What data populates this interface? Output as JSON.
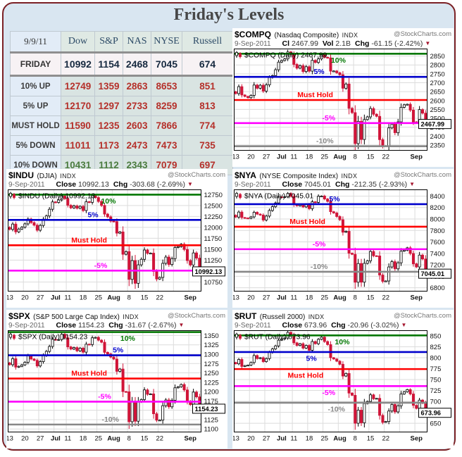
{
  "title": "Friday's Levels",
  "icons": {
    "down_triangle": "▼",
    "candlestick": "candlestick-icon"
  },
  "colors": {
    "frame_border": "#7b2125",
    "page_bg": "#d9e6f1",
    "level_up10": "#007700",
    "level_up5": "#0000cc",
    "level_must_hold": "#ff0000",
    "level_down5": "#ff00ff",
    "level_down10": "#808080",
    "candle_down": "#d01438",
    "candle_up": "#ffffff",
    "table_red": "#b5302a",
    "table_green": "#4b7c3f",
    "table_navy": "#16293f"
  },
  "table": {
    "date": "9/9/11",
    "columns": [
      "Dow",
      "S&P",
      "NAS",
      "NYSE",
      "Russell"
    ],
    "rows": [
      {
        "label": "FRIDAY",
        "values": [
          "10992",
          "1154",
          "2468",
          "7045",
          "674"
        ],
        "value_colors": [
          "#16293f",
          "#16293f",
          "#16293f",
          "#16293f",
          "#16293f"
        ]
      },
      {
        "label": "10% UP",
        "values": [
          "12749",
          "1359",
          "2863",
          "8653",
          "851"
        ],
        "value_colors": [
          "#b5302a",
          "#b5302a",
          "#b5302a",
          "#b5302a",
          "#b5302a"
        ]
      },
      {
        "label": "5% UP",
        "values": [
          "12170",
          "1297",
          "2733",
          "8259",
          "813"
        ],
        "value_colors": [
          "#b5302a",
          "#b5302a",
          "#b5302a",
          "#b5302a",
          "#b5302a"
        ]
      },
      {
        "label": "MUST HOLD",
        "values": [
          "11590",
          "1235",
          "2603",
          "7866",
          "774"
        ],
        "value_colors": [
          "#b5302a",
          "#b5302a",
          "#b5302a",
          "#b5302a",
          "#b5302a"
        ]
      },
      {
        "label": "5% DOWN",
        "values": [
          "11011",
          "1173",
          "2473",
          "7473",
          "735"
        ],
        "value_colors": [
          "#b5302a",
          "#b5302a",
          "#b5302a",
          "#b5302a",
          "#b5302a"
        ]
      },
      {
        "label": "10% DOWN",
        "values": [
          "10431",
          "1112",
          "2343",
          "7079",
          "697"
        ],
        "value_colors": [
          "#4b7c3f",
          "#4b7c3f",
          "#4b7c3f",
          "#b5302a",
          "#b5302a"
        ]
      }
    ]
  },
  "x_axis": {
    "grid_indices": [
      0,
      5,
      10,
      15,
      19,
      24,
      29,
      34,
      39,
      44,
      49,
      54,
      59
    ],
    "labels": [
      {
        "i": 0,
        "t": "13"
      },
      {
        "i": 5,
        "t": "20"
      },
      {
        "i": 10,
        "t": "27"
      },
      {
        "i": 15,
        "t": "Jul",
        "bold": true
      },
      {
        "i": 19,
        "t": "11"
      },
      {
        "i": 24,
        "t": "18"
      },
      {
        "i": 29,
        "t": "25"
      },
      {
        "i": 34,
        "t": "Aug",
        "bold": true
      },
      {
        "i": 39,
        "t": "8"
      },
      {
        "i": 44,
        "t": "15"
      },
      {
        "i": 49,
        "t": "22"
      },
      {
        "i": 59,
        "t": "Sep",
        "bold": true
      }
    ]
  },
  "chart_data": [
    {
      "type": "candlestick",
      "symbol": "$COMPQ",
      "name": "(Nasdaq Composite)",
      "kind": "INDX",
      "source": "@StockCharts.com",
      "date": "9-Sep-2011",
      "close_label": "Cl",
      "close": "2467.99",
      "vol_label": "Vol",
      "vol": "2.1B",
      "chg_label": "Chg",
      "chg": "-61.15 (-2.42%)",
      "legend": "$COMPQ (Daily) 2467.99",
      "y_ticks": [
        2350,
        2400,
        2450,
        2500,
        2550,
        2600,
        2650,
        2700,
        2750,
        2800,
        2850
      ],
      "y_range": [
        2320,
        2890
      ],
      "levels": [
        {
          "label": "10%",
          "value": 2863,
          "color": "#007700",
          "side": "below",
          "x": 0.54
        },
        {
          "label": "5%",
          "value": 2733,
          "color": "#0000cc",
          "side": "above",
          "x": 0.44
        },
        {
          "label": "Must Hold",
          "value": 2603,
          "color": "#ff0000",
          "side": "above",
          "x": 0.42
        },
        {
          "label": "-5%",
          "value": 2473,
          "color": "#ff00ff",
          "side": "above",
          "x": 0.49
        },
        {
          "label": "-10%",
          "value": 2343,
          "color": "#888888",
          "side": "above",
          "x": 0.47
        }
      ],
      "closes": [
        2639,
        2678,
        2631,
        2623,
        2616,
        2629,
        2687,
        2669,
        2686,
        2653,
        2688,
        2729,
        2740,
        2773,
        2816,
        2825,
        2834,
        2873,
        2860,
        2803,
        2782,
        2796,
        2763,
        2790,
        2765,
        2826,
        2814,
        2834,
        2858,
        2843,
        2840,
        2765,
        2766,
        2756,
        2745,
        2669,
        2693,
        2556,
        2532,
        2358,
        2483,
        2381,
        2493,
        2508,
        2555,
        2523,
        2511,
        2380,
        2342,
        2345,
        2446,
        2467,
        2419,
        2480,
        2562,
        2576,
        2579,
        2546,
        2480,
        2473,
        2549,
        2529,
        2467.99
      ]
    },
    {
      "type": "candlestick",
      "symbol": "$INDU",
      "name": "(DJIA)",
      "kind": "INDX",
      "source": "@StockCharts.com",
      "date": "9-Sep-2011",
      "close_label": "Close",
      "close": "10992.13",
      "vol_label": "",
      "vol": "",
      "chg_label": "Chg",
      "chg": "-303.68 (-2.69%)",
      "legend": "$INDU (Daily) 10992.13",
      "y_ticks": [
        10750,
        11000,
        11250,
        11500,
        11750,
        12000,
        12250,
        12500,
        12750
      ],
      "y_range": [
        10540,
        12860
      ],
      "levels": [
        {
          "label": "10%",
          "value": 12749,
          "color": "#007700",
          "side": "below",
          "x": 0.52
        },
        {
          "label": "5%",
          "value": 12170,
          "color": "#0000cc",
          "side": "above",
          "x": 0.44
        },
        {
          "label": "Must Hold",
          "value": 11590,
          "color": "#ff0000",
          "side": "above",
          "x": 0.42
        },
        {
          "label": "-5%",
          "value": 11011,
          "color": "#ff00ff",
          "side": "above",
          "x": 0.48
        },
        {
          "label": "-10%",
          "value": 10431,
          "color": "#888888",
          "side": "above",
          "x": 0.48
        }
      ],
      "closes": [
        11953,
        12076,
        11897,
        11962,
        12004,
        12080,
        12190,
        12109,
        12050,
        11934,
        12043,
        12188,
        12261,
        12414,
        12582,
        12570,
        12626,
        12719,
        12657,
        12505,
        12446,
        12492,
        12437,
        12480,
        12385,
        12587,
        12572,
        12724,
        12681,
        12593,
        12501,
        12303,
        12240,
        12143,
        12132,
        11867,
        11896,
        11384,
        11445,
        10810,
        11240,
        10720,
        11143,
        11269,
        11482,
        11406,
        11410,
        10991,
        10818,
        10855,
        11177,
        11321,
        11150,
        11285,
        11539,
        11560,
        11614,
        11494,
        11240,
        11139,
        11415,
        11296,
        10992.13
      ]
    },
    {
      "type": "candlestick",
      "symbol": "$NYA",
      "name": "(NYSE Composite Index)",
      "kind": "INDX",
      "source": "@StockCharts.com",
      "date": "9-Sep-2011",
      "close_label": "Close",
      "close": "7045.01",
      "vol_label": "",
      "vol": "",
      "chg_label": "Chg",
      "chg": "-212.35 (-2.93%)",
      "legend": "$NYA (Daily) 7045.01",
      "y_ticks": [
        6800,
        7000,
        7200,
        7400,
        7600,
        7800,
        8000,
        8200,
        8400
      ],
      "y_range": [
        6740,
        8510
      ],
      "levels": [
        {
          "label": "10%",
          "value": 8653,
          "color": "#007700",
          "side": "above",
          "x": 0.5
        },
        {
          "label": "5%",
          "value": 8259,
          "color": "#0000cc",
          "side": "above",
          "x": 0.52
        },
        {
          "label": "Must Hold",
          "value": 7866,
          "color": "#ff0000",
          "side": "above",
          "x": 0.38
        },
        {
          "label": "-5%",
          "value": 7473,
          "color": "#ff00ff",
          "side": "above",
          "x": 0.44
        },
        {
          "label": "-10%",
          "value": 7079,
          "color": "#888888",
          "side": "above",
          "x": 0.44
        }
      ],
      "closes": [
        8033,
        8121,
        8025,
        8017,
        8012,
        8037,
        8117,
        8085,
        8069,
        7982,
        8051,
        8149,
        8215,
        8280,
        8386,
        8380,
        8388,
        8446,
        8396,
        8253,
        8230,
        8248,
        8211,
        8254,
        8180,
        8300,
        8290,
        8396,
        8401,
        8349,
        8307,
        8127,
        8105,
        8043,
        7987,
        7769,
        7785,
        7402,
        7383,
        6896,
        7223,
        6897,
        7226,
        7270,
        7433,
        7358,
        7355,
        7021,
        6911,
        6918,
        7163,
        7255,
        7130,
        7235,
        7438,
        7455,
        7496,
        7398,
        7217,
        7163,
        7370,
        7302,
        7045.01
      ]
    },
    {
      "type": "candlestick",
      "symbol": "$SPX",
      "name": "(S&P 500 Large Cap Index)",
      "kind": "INDX",
      "source": "@StockCharts.com",
      "date": "9-Sep-2011",
      "close_label": "Close",
      "close": "1154.23",
      "vol_label": "",
      "vol": "",
      "chg_label": "Chg",
      "chg": "-31.67 (-2.67%)",
      "legend": "$SPX (Daily) 1154.23",
      "y_ticks": [
        1100,
        1125,
        1150,
        1175,
        1200,
        1225,
        1250,
        1275,
        1300,
        1325,
        1350
      ],
      "y_range": [
        1092,
        1363
      ],
      "levels": [
        {
          "label": "10%",
          "value": 1359,
          "color": "#007700",
          "side": "below",
          "x": 0.62
        },
        {
          "label": "5%",
          "value": 1297,
          "color": "#0000cc",
          "side": "above",
          "x": 0.57
        },
        {
          "label": "Must Hold",
          "value": 1235,
          "color": "#ff0000",
          "side": "above",
          "x": 0.42
        },
        {
          "label": "-5%",
          "value": 1173,
          "color": "#ff00ff",
          "side": "above",
          "x": 0.5
        },
        {
          "label": "-10%",
          "value": 1112,
          "color": "#888888",
          "side": "above",
          "x": 0.53
        }
      ],
      "closes": [
        1271.8,
        1287.9,
        1265.4,
        1267.6,
        1271.5,
        1278.4,
        1295.5,
        1287.1,
        1283.5,
        1268.5,
        1280.1,
        1296.7,
        1307.4,
        1320.6,
        1339.7,
        1337.9,
        1339.2,
        1353.2,
        1343.8,
        1319.5,
        1313.6,
        1317.7,
        1308.9,
        1316.1,
        1305.4,
        1326.7,
        1325.8,
        1343.8,
        1345.0,
        1337.4,
        1331.9,
        1304.9,
        1300.7,
        1292.3,
        1286.9,
        1254.1,
        1260.3,
        1200.1,
        1199.4,
        1119.5,
        1172.5,
        1120.8,
        1172.6,
        1178.8,
        1204.5,
        1192.8,
        1193.9,
        1140.7,
        1123.5,
        1123.8,
        1162.3,
        1177.6,
        1159.3,
        1176.8,
        1210.1,
        1212.9,
        1218.9,
        1204.4,
        1174.0,
        1165.2,
        1198.6,
        1185.9,
        1154.23
      ]
    },
    {
      "type": "candlestick",
      "symbol": "$RUT",
      "name": "(Russell 2000)",
      "kind": "INDX",
      "source": "@StockCharts.com",
      "date": "9-Sep-2011",
      "close_label": "Close",
      "close": "673.96",
      "vol_label": "",
      "vol": "",
      "chg_label": "Chg",
      "chg": "-20.96 (-3.02%)",
      "legend": "$RUT (Daily) 673.96",
      "y_ticks": [
        650,
        675,
        700,
        725,
        750,
        775,
        800,
        825,
        850
      ],
      "y_range": [
        630,
        862
      ],
      "levels": [
        {
          "label": "10%",
          "value": 851,
          "color": "#007700",
          "side": "below",
          "x": 0.56
        },
        {
          "label": "5%",
          "value": 813,
          "color": "#0000cc",
          "side": "below",
          "x": 0.4
        },
        {
          "label": "Must Hold",
          "value": 774,
          "color": "#ff0000",
          "side": "below",
          "x": 0.37
        },
        {
          "label": "-5%",
          "value": 735,
          "color": "#ff00ff",
          "side": "below",
          "x": 0.49
        },
        {
          "label": "-10%",
          "value": 697,
          "color": "#888888",
          "side": "below",
          "x": 0.53
        }
      ],
      "closes": [
        786,
        796,
        780,
        782,
        783,
        789,
        805,
        798,
        800,
        791,
        798,
        812,
        820,
        827,
        840,
        843,
        845,
        858,
        852,
        834,
        828,
        832,
        822,
        828,
        817,
        837,
        832,
        842,
        847,
        837,
        830,
        800,
        797,
        792,
        785,
        758,
        764,
        719,
        714,
        650,
        680,
        651,
        695,
        700,
        715,
        706,
        707,
        668,
        652,
        654,
        678,
        693,
        676,
        690,
        717,
        722,
        727,
        717,
        691,
        684,
        703,
        696,
        673.96
      ]
    }
  ]
}
